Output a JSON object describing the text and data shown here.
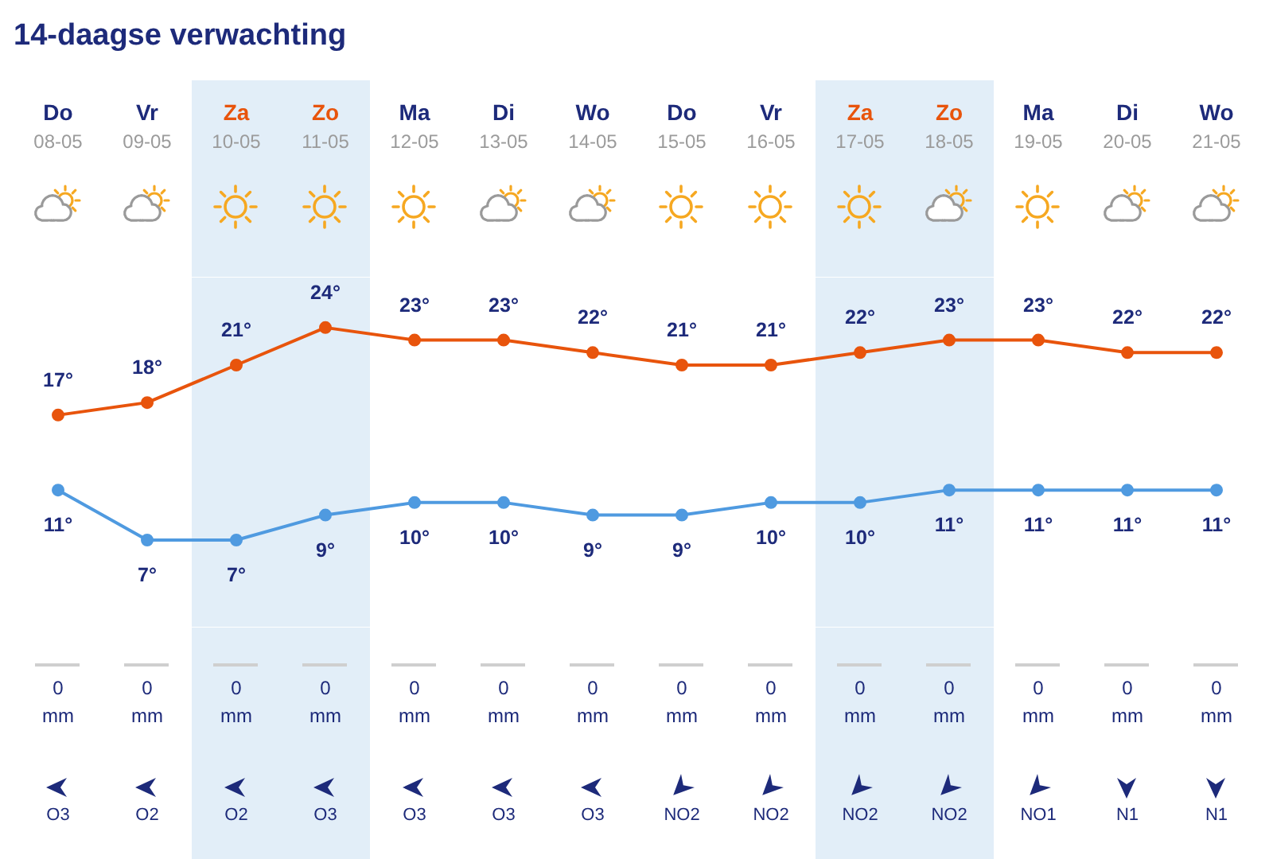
{
  "chart_data": {
    "type": "line",
    "title": "14-daagse verwachting",
    "categories": [
      "Do 08-05",
      "Vr 09-05",
      "Za 10-05",
      "Zo 11-05",
      "Ma 12-05",
      "Di 13-05",
      "Wo 14-05",
      "Do 15-05",
      "Vr 16-05",
      "Za 17-05",
      "Zo 18-05",
      "Ma 19-05",
      "Di 20-05",
      "Wo 21-05"
    ],
    "series": [
      {
        "color": "#e8540c",
        "values": [
          17,
          18,
          21,
          24,
          23,
          23,
          22,
          21,
          21,
          22,
          23,
          23,
          22,
          22
        ],
        "value_labels": [
          "17°",
          "18°",
          "21°",
          "24°",
          "23°",
          "23°",
          "22°",
          "21°",
          "21°",
          "22°",
          "23°",
          "23°",
          "22°",
          "22°"
        ]
      },
      {
        "color": "#4f9ae0",
        "values": [
          11,
          7,
          7,
          9,
          10,
          10,
          9,
          9,
          10,
          10,
          11,
          11,
          11,
          11
        ],
        "value_labels": [
          "11°",
          "7°",
          "7°",
          "9°",
          "10°",
          "10°",
          "9°",
          "9°",
          "10°",
          "10°",
          "11°",
          "11°",
          "11°",
          "11°"
        ]
      }
    ],
    "ylim": [
      0,
      28
    ],
    "tick_labels": "x",
    "marker": "circle",
    "bands": [
      {
        "axis": "x",
        "from": "Za 10-05",
        "to": "Zo 11-05",
        "color": "#e2eef8"
      },
      {
        "axis": "x",
        "from": "Za 17-05",
        "to": "Zo 18-05",
        "color": "#e2eef8"
      }
    ],
    "annotations": [
      "0 mm",
      "0 mm",
      "0 mm",
      "0 mm",
      "0 mm",
      "0 mm",
      "0 mm",
      "0 mm",
      "0 mm",
      "0 mm",
      "0 mm",
      "0 mm",
      "0 mm",
      "0 mm",
      "O3",
      "O2",
      "O2",
      "O3",
      "O3",
      "O3",
      "O3",
      "NO2",
      "NO2",
      "NO2",
      "NO2",
      "NO1",
      "N1",
      "N1"
    ]
  }
}
